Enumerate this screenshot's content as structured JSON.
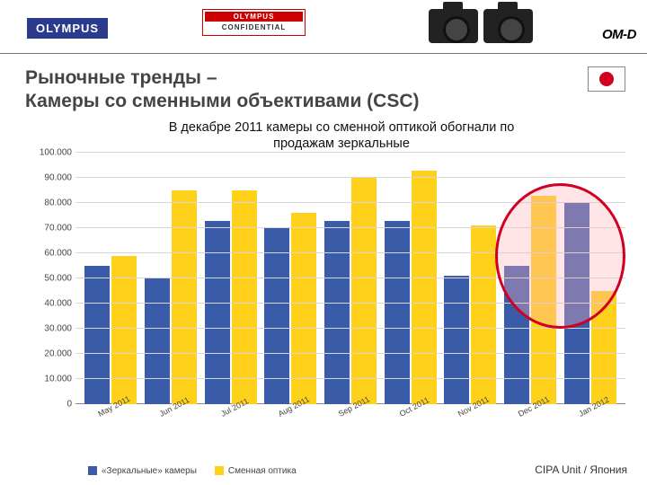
{
  "header": {
    "logo": "OLYMPUS",
    "confidential_top": "OLYMPUS",
    "confidential_mid": "CONFIDENTIAL",
    "omd_logo": "OM-D"
  },
  "title_line1": "Рыночные тренды –",
  "title_line2": "Камеры со сменными объективами (CSC)",
  "subtitle_line1": "В декабре 2011 камеры со сменной оптикой обогнали по",
  "subtitle_line2": "продажам зеркальные",
  "chart": {
    "type": "bar",
    "y_max": 100000,
    "y_min": 0,
    "y_step": 10000,
    "y_labels": [
      "0",
      "10.000",
      "20.000",
      "30.000",
      "40.000",
      "50.000",
      "60.000",
      "70.000",
      "80.000",
      "90.000",
      "100.000"
    ],
    "categories": [
      "May 2011",
      "Jun 2011",
      "Jul 2011",
      "Aug 2011",
      "Sep 2011",
      "Oct 2011",
      "Nov 2011",
      "Dec 2011",
      "Jan 2012"
    ],
    "series": [
      {
        "name": "«Зеркальные» камеры",
        "color": "#3a5ba8",
        "values": [
          55000,
          50000,
          73000,
          70000,
          73000,
          73000,
          51000,
          55000,
          80000
        ]
      },
      {
        "name": "Сменная оптика",
        "color": "#ffd11a",
        "values": [
          59000,
          85000,
          85000,
          76000,
          90000,
          93000,
          71000,
          83000,
          45000
        ]
      }
    ],
    "grid_color": "#d7d7d7",
    "background": "#ffffff",
    "highlight_last_pair": true,
    "highlight_color": "#d00020",
    "axis_label_fontsize": 10,
    "x_label_rotation_deg": -28
  },
  "legend": {
    "items": [
      "«Зеркальные» камеры",
      "Сменная оптика"
    ]
  },
  "source": "CIPA Unit / Япония"
}
